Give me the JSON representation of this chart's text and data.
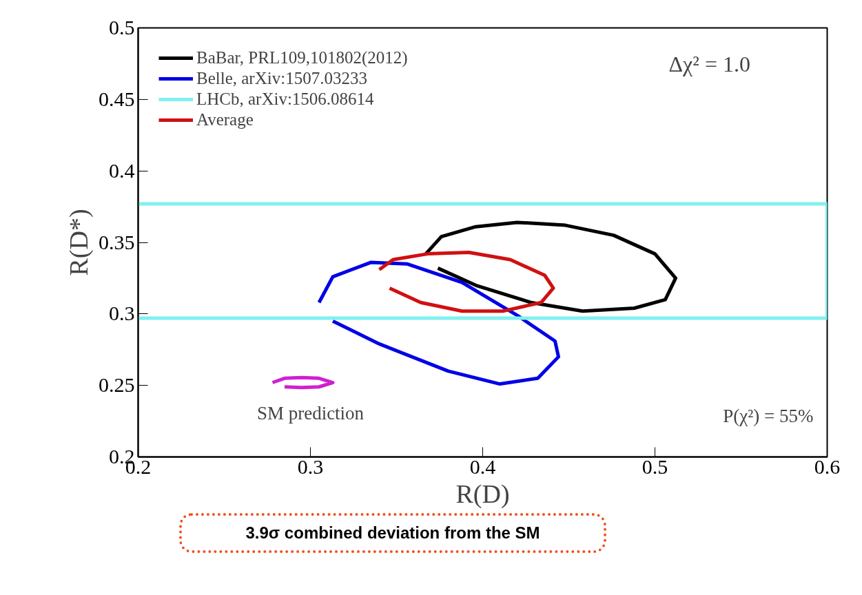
{
  "chart_data": {
    "type": "line",
    "xlabel": "R(D)",
    "ylabel": "R(D*)",
    "xlim": [
      0.2,
      0.6
    ],
    "ylim": [
      0.2,
      0.5
    ],
    "xticks": [
      0.2,
      0.3,
      0.4,
      0.5,
      0.6
    ],
    "yticks": [
      0.2,
      0.25,
      0.3,
      0.35,
      0.4,
      0.45,
      0.5
    ],
    "grid": false,
    "legend": "top left",
    "marker": "none",
    "line_style": "solid",
    "series": [
      {
        "name": "BaBar, PRL109,101802(2012)",
        "color": "#000000",
        "x": [
          0.367,
          0.376,
          0.396,
          0.42,
          0.448,
          0.476,
          0.5,
          0.512,
          0.506,
          0.488,
          0.458,
          0.428,
          0.396,
          0.374
        ],
        "values": [
          0.342,
          0.354,
          0.361,
          0.364,
          0.362,
          0.355,
          0.342,
          0.325,
          0.31,
          0.304,
          0.302,
          0.308,
          0.32,
          0.332
        ]
      },
      {
        "name": "Belle, arXiv:1507.03233",
        "color": "#0000e6",
        "x": [
          0.305,
          0.313,
          0.335,
          0.356,
          0.388,
          0.42,
          0.442,
          0.444,
          0.432,
          0.41,
          0.38,
          0.34,
          0.313
        ],
        "values": [
          0.308,
          0.326,
          0.336,
          0.335,
          0.322,
          0.299,
          0.281,
          0.27,
          0.255,
          0.251,
          0.26,
          0.279,
          0.295
        ]
      },
      {
        "name": "LHCb, arXiv:1506.08614",
        "color": "#80f0f0",
        "x": [
          0.2,
          0.6,
          0.6,
          0.2
        ],
        "values": [
          0.377,
          0.377,
          0.297,
          0.297
        ]
      },
      {
        "name": "Average",
        "color": "#d01010",
        "x": [
          0.34,
          0.348,
          0.368,
          0.392,
          0.416,
          0.436,
          0.441,
          0.434,
          0.412,
          0.388,
          0.364,
          0.346
        ],
        "values": [
          0.331,
          0.338,
          0.342,
          0.343,
          0.338,
          0.327,
          0.318,
          0.308,
          0.302,
          0.302,
          0.308,
          0.318
        ]
      },
      {
        "color": "#d020d0",
        "x": [
          0.278,
          0.285,
          0.295,
          0.305,
          0.313,
          0.305,
          0.295,
          0.285
        ],
        "values": [
          0.252,
          0.255,
          0.2555,
          0.255,
          0.252,
          0.249,
          0.2485,
          0.249
        ]
      }
    ],
    "annotations": [
      "Δχ² = 1.0",
      "P(χ²) = 55%",
      "SM prediction",
      "3.9σ combined deviation from the SM"
    ]
  }
}
